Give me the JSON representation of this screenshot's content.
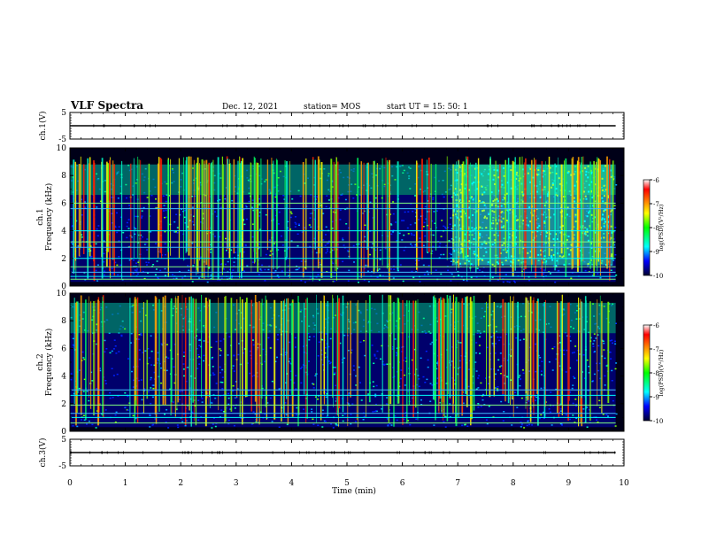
{
  "header": {
    "title": "VLF Spectra",
    "date": "Dec. 12, 2021",
    "station": "station= MOS",
    "start": "start UT = 15: 50: 1"
  },
  "chart_data": [
    {
      "type": "line",
      "ylabel": "ch.1(V)",
      "ylim": [
        -5,
        5
      ],
      "y_ticks": [
        "5",
        "-5"
      ],
      "xlim": [
        0,
        10
      ],
      "series": [
        {
          "x": [
            0,
            9.85
          ],
          "y": [
            0,
            0
          ]
        }
      ]
    },
    {
      "type": "heatmap",
      "ylabel": "ch.1\nFrequency (kHz)",
      "ylim": [
        0,
        10
      ],
      "y_ticks": [
        "10",
        "8",
        "6",
        "4",
        "2",
        "0"
      ],
      "xlim": [
        0,
        10
      ],
      "colorbar": {
        "ticks": [
          "-6",
          "-7",
          "-8",
          "-9",
          "-10"
        ],
        "label": "log(PSD)(V²/Hz)",
        "range": [
          -10,
          -6
        ]
      },
      "band_kHz": [
        0.3,
        8.8
      ],
      "hiss_region_min": [
        6.9,
        9.8
      ],
      "hiss_region_kHz": [
        1.5,
        8.8
      ],
      "hum_lines_kHz": [
        0.5,
        0.7,
        1.0,
        1.4,
        2.0,
        2.8,
        3.2,
        4.0,
        5.6,
        6.0
      ]
    },
    {
      "type": "heatmap",
      "ylabel": "ch.2\nFrequency (kHz)",
      "ylim": [
        0,
        10
      ],
      "y_ticks": [
        "10",
        "8",
        "6",
        "4",
        "2",
        "0"
      ],
      "xlim": [
        0,
        10
      ],
      "colorbar": {
        "ticks": [
          "-6",
          "-7",
          "-8",
          "-9",
          "-10"
        ],
        "label": "log(PSD)(V²/Hz)",
        "range": [
          -10,
          -6
        ]
      },
      "band_kHz": [
        0.3,
        9.3
      ],
      "hum_lines_kHz": [
        0.6,
        1.0,
        1.3,
        1.9,
        2.6,
        3.0
      ]
    },
    {
      "type": "line",
      "ylabel": "ch.3(V)",
      "ylim": [
        -5,
        5
      ],
      "y_ticks": [
        "5",
        "-5"
      ],
      "xlim": [
        0,
        10
      ],
      "xlabel": "Time (min)",
      "x_ticks": [
        "0",
        "1",
        "2",
        "3",
        "4",
        "5",
        "6",
        "7",
        "8",
        "9",
        "10"
      ],
      "series": [
        {
          "x": [
            0,
            9.85
          ],
          "y": [
            0,
            0
          ]
        }
      ]
    }
  ]
}
